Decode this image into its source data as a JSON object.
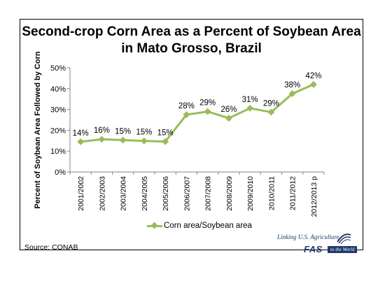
{
  "chart_data": {
    "type": "line",
    "title": "Second-crop Corn Area as a Percent of Soybean Area in Mato Grosso, Brazil",
    "xlabel": "",
    "ylabel": "Percent of Soybean Area Followed by Corn",
    "categories": [
      "2001/2002",
      "2002/2003",
      "2003/2004",
      "2004/2005",
      "2005/2006",
      "2006/2007",
      "2007/2008",
      "2008/2009",
      "2009/2010",
      "2010/2011",
      "2011/2012",
      "2012/2013 p"
    ],
    "series": [
      {
        "name": "Corn area/Soybean area",
        "values": [
          14.5,
          15.7,
          15.3,
          14.9,
          14.6,
          27.5,
          29.0,
          25.8,
          30.6,
          28.7,
          37.6,
          42.0
        ],
        "labels": [
          "14%",
          "16%",
          "15%",
          "15%",
          "15%",
          "28%",
          "29%",
          "26%",
          "31%",
          "29%",
          "38%",
          "42%"
        ],
        "color": "#9BBB59"
      }
    ],
    "ylim": [
      0,
      50
    ],
    "yticks": [
      0,
      10,
      20,
      30,
      40,
      50
    ],
    "ytick_labels": [
      "0%",
      "10%",
      "20%",
      "30%",
      "40%",
      "50%"
    ],
    "grid": false,
    "legend": "bottom"
  },
  "source": "Source: CONAB",
  "logo": {
    "tagline": "Linking U.S. Agriculture",
    "brand": "FAS",
    "world": "to the World"
  }
}
